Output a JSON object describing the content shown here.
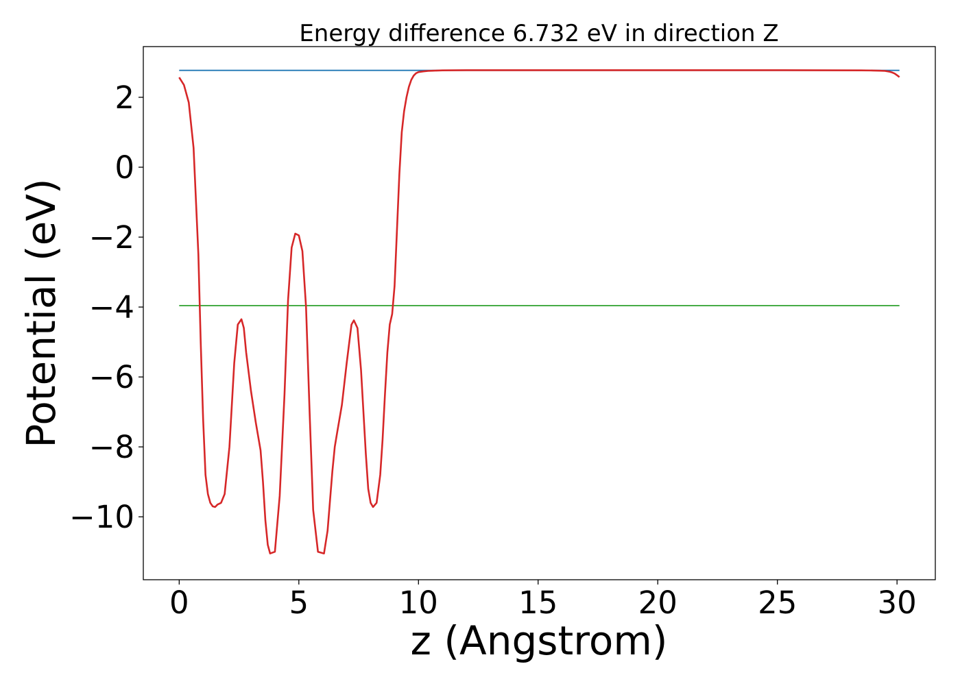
{
  "chart_data": {
    "type": "line",
    "title": "Energy difference 6.732 eV in direction Z",
    "xlabel": "z (Angstrom)",
    "ylabel": "Potential (eV)",
    "xlim": [
      -1.5,
      31.6
    ],
    "ylim": [
      -11.8,
      3.45
    ],
    "grid": false,
    "legend": "none",
    "x_ticks": [
      0,
      5,
      10,
      15,
      20,
      25,
      30
    ],
    "x_tick_labels": [
      "0",
      "5",
      "10",
      "15",
      "20",
      "25",
      "30"
    ],
    "y_ticks": [
      2,
      0,
      -2,
      -4,
      -6,
      -8,
      -10
    ],
    "y_tick_labels": [
      "2",
      "0",
      "−2",
      "−4",
      "−6",
      "−8",
      "−10"
    ],
    "series": [
      {
        "color": "#1f77b4",
        "x": [
          0,
          30.1
        ],
        "y": [
          2.77,
          2.77
        ]
      },
      {
        "color": "#2ca02c",
        "x": [
          0,
          30.1
        ],
        "y": [
          -3.96,
          -3.96
        ]
      },
      {
        "color": "#d62728",
        "x": [
          0,
          0.2,
          0.4,
          0.6,
          0.8,
          0.9,
          1.0,
          1.1,
          1.2,
          1.3,
          1.4,
          1.5,
          1.6,
          1.75,
          1.9,
          2.1,
          2.3,
          2.45,
          2.6,
          2.7,
          2.8,
          3.0,
          3.2,
          3.4,
          3.5,
          3.6,
          3.7,
          3.8,
          4.0,
          4.2,
          4.4,
          4.55,
          4.7,
          4.85,
          5.0,
          5.15,
          5.3,
          5.45,
          5.6,
          5.8,
          6.05,
          6.2,
          6.4,
          6.5,
          6.6,
          6.8,
          7.0,
          7.2,
          7.3,
          7.45,
          7.6,
          7.7,
          7.8,
          7.9,
          8.0,
          8.1,
          8.25,
          8.4,
          8.5,
          8.6,
          8.7,
          8.8,
          8.9,
          9.0,
          9.1,
          9.2,
          9.3,
          9.4,
          9.5,
          9.6,
          9.7,
          9.8,
          9.9,
          10.0,
          10.2,
          10.4,
          10.6,
          10.8,
          11.0,
          11.5,
          12.0,
          15.0,
          20.0,
          25.0,
          28.5,
          29.0,
          29.3,
          29.5,
          29.7,
          29.8,
          29.9,
          30.0,
          30.1
        ],
        "y": [
          2.57,
          2.35,
          1.85,
          0.55,
          -2.5,
          -5.0,
          -7.2,
          -8.8,
          -9.35,
          -9.6,
          -9.7,
          -9.72,
          -9.65,
          -9.6,
          -9.35,
          -8.0,
          -5.6,
          -4.5,
          -4.35,
          -4.6,
          -5.3,
          -6.4,
          -7.3,
          -8.1,
          -9.0,
          -10.1,
          -10.8,
          -11.05,
          -11.0,
          -9.4,
          -6.5,
          -3.8,
          -2.3,
          -1.9,
          -1.95,
          -2.4,
          -4.0,
          -7.0,
          -9.8,
          -11.0,
          -11.05,
          -10.4,
          -8.7,
          -8.0,
          -7.6,
          -6.8,
          -5.6,
          -4.5,
          -4.38,
          -4.6,
          -5.8,
          -7.0,
          -8.2,
          -9.2,
          -9.6,
          -9.72,
          -9.6,
          -8.8,
          -7.8,
          -6.5,
          -5.3,
          -4.5,
          -4.2,
          -3.4,
          -1.8,
          -0.2,
          1.0,
          1.6,
          2.0,
          2.3,
          2.5,
          2.62,
          2.69,
          2.72,
          2.74,
          2.755,
          2.76,
          2.765,
          2.77,
          2.772,
          2.775,
          2.775,
          2.775,
          2.775,
          2.77,
          2.765,
          2.76,
          2.755,
          2.73,
          2.71,
          2.68,
          2.63,
          2.58
        ]
      }
    ]
  }
}
